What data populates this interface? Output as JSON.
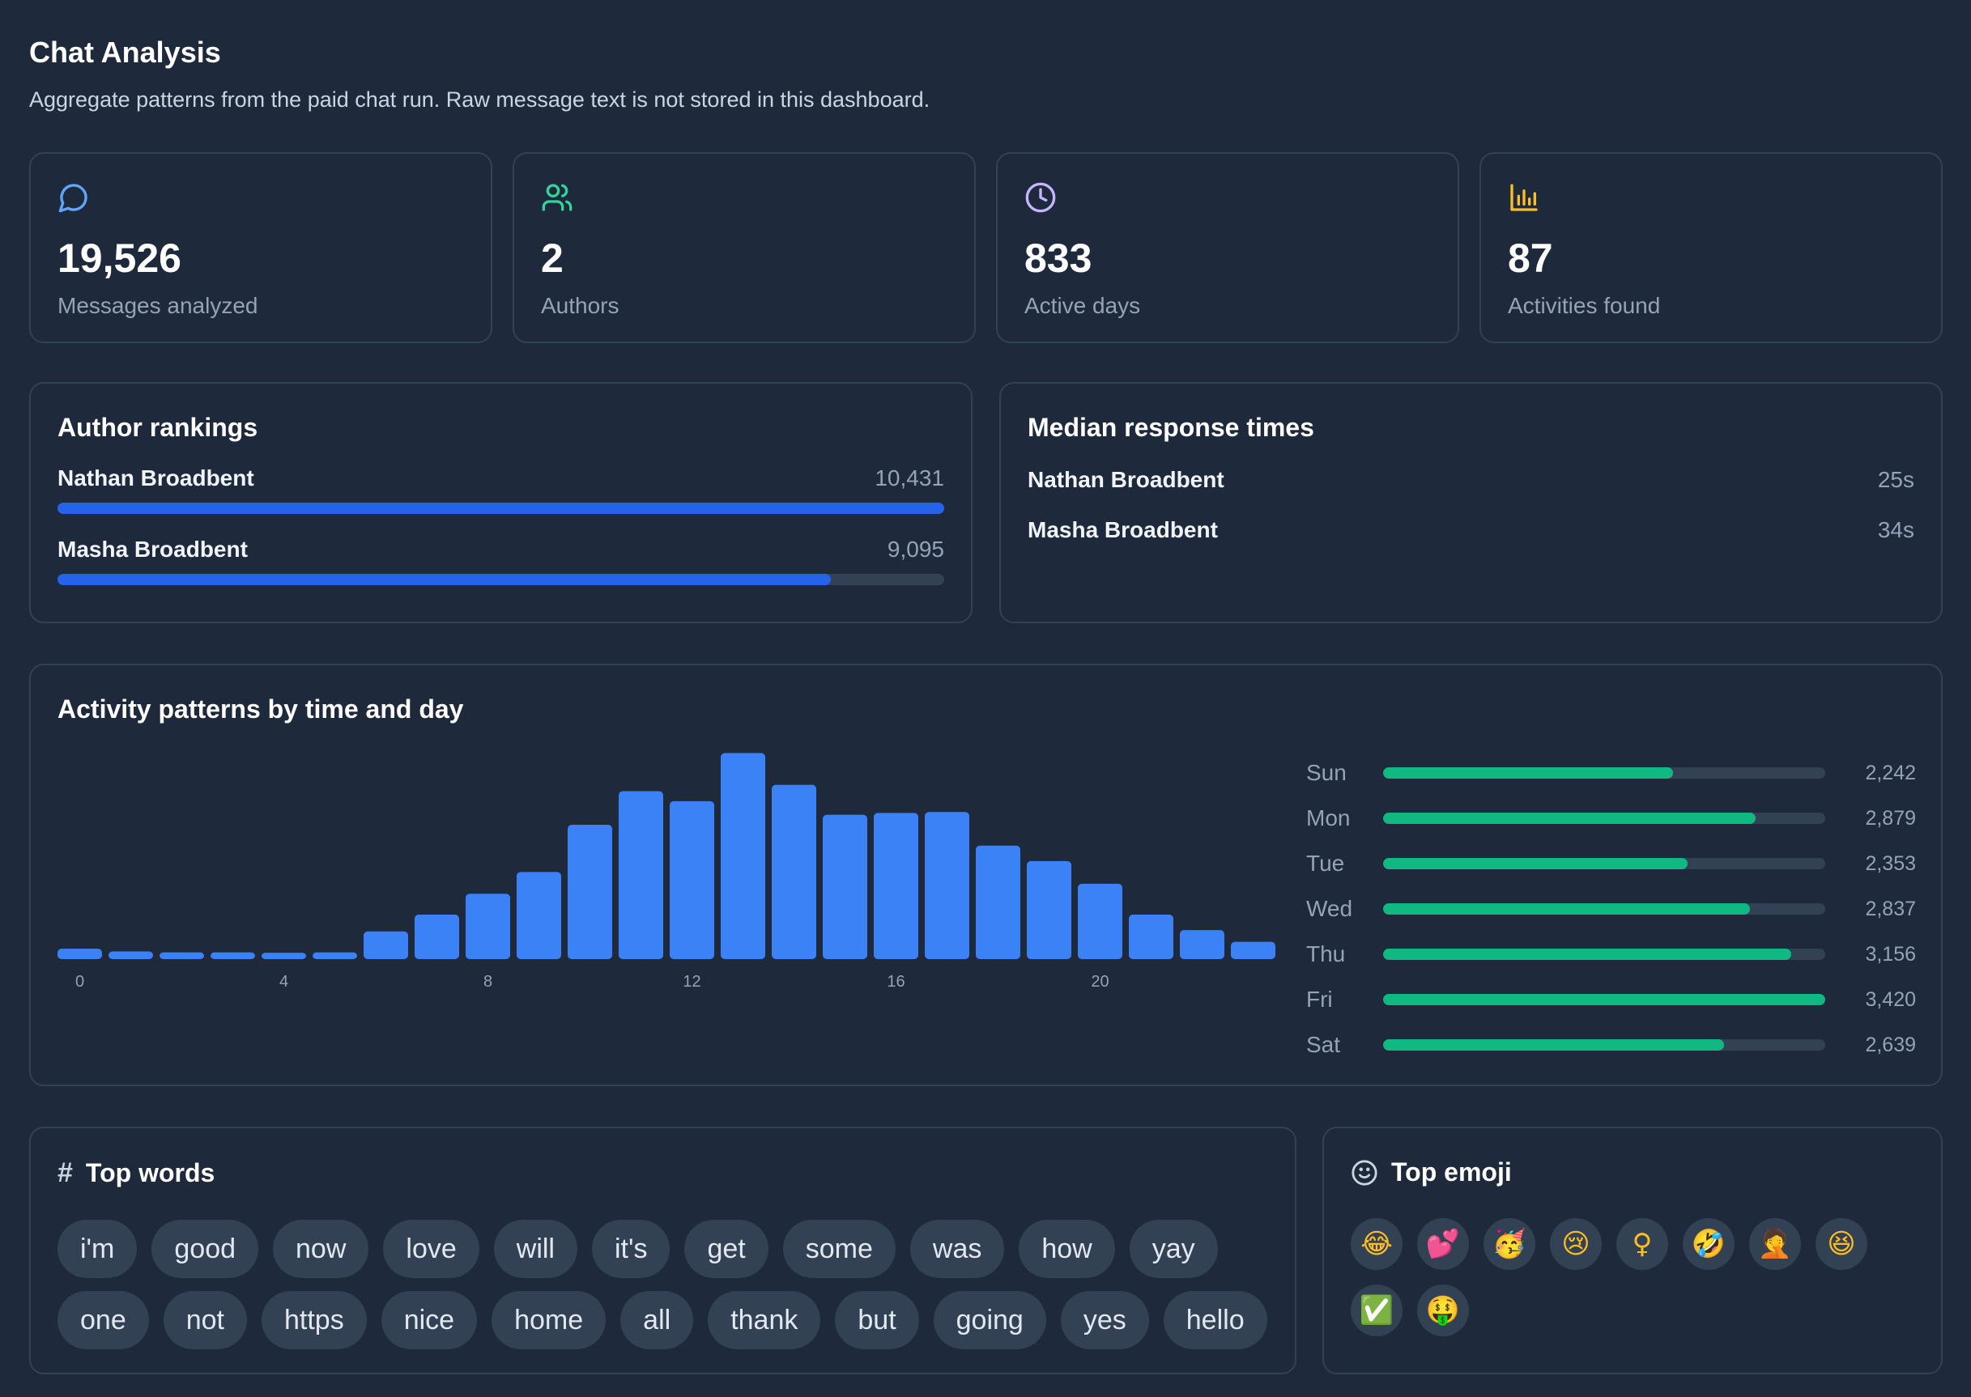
{
  "header": {
    "title": "Chat Analysis",
    "subtitle": "Aggregate patterns from the paid chat run. Raw message text is not stored in this dashboard."
  },
  "stats": [
    {
      "icon": "chat-bubble-icon",
      "value": "19,526",
      "label": "Messages analyzed",
      "color": "#60a5fa"
    },
    {
      "icon": "users-icon",
      "value": "2",
      "label": "Authors",
      "color": "#34d399"
    },
    {
      "icon": "clock-icon",
      "value": "833",
      "label": "Active days",
      "color": "#c4b5fd"
    },
    {
      "icon": "bar-chart-icon",
      "value": "87",
      "label": "Activities found",
      "color": "#fbbf24"
    }
  ],
  "author_rankings": {
    "title": "Author rankings",
    "authors": [
      {
        "name": "Nathan Broadbent",
        "count": "10,431",
        "share": 1.0
      },
      {
        "name": "Masha Broadbent",
        "count": "9,095",
        "share": 0.872
      }
    ]
  },
  "response_times": {
    "title": "Median response times",
    "rows": [
      {
        "name": "Nathan Broadbent",
        "value": "25s"
      },
      {
        "name": "Masha Broadbent",
        "value": "34s"
      }
    ]
  },
  "activity": {
    "title": "Activity patterns by time and day"
  },
  "chart_data": [
    {
      "type": "bar",
      "x": [
        0,
        1,
        2,
        3,
        4,
        5,
        6,
        7,
        8,
        9,
        10,
        11,
        12,
        13,
        14,
        15,
        16,
        17,
        18,
        19,
        20,
        21,
        22,
        23
      ],
      "tick_labels": [
        "0",
        "4",
        "8",
        "12",
        "16",
        "20"
      ],
      "values": [
        115,
        85,
        75,
        75,
        70,
        75,
        305,
        490,
        720,
        960,
        1480,
        1850,
        1740,
        2270,
        1920,
        1590,
        1610,
        1620,
        1250,
        1080,
        830,
        490,
        320,
        190
      ],
      "xlabel": "",
      "ylabel": "",
      "ylim": [
        0,
        2300
      ],
      "grid": false
    },
    {
      "type": "bar",
      "orientation": "horizontal",
      "categories": [
        "Sun",
        "Mon",
        "Tue",
        "Wed",
        "Thu",
        "Fri",
        "Sat"
      ],
      "values": [
        2242,
        2879,
        2353,
        2837,
        3156,
        3420,
        2639
      ],
      "value_labels": [
        "2,242",
        "2,879",
        "2,353",
        "2,837",
        "3,156",
        "3,420",
        "2,639"
      ],
      "xlim": [
        0,
        3420
      ]
    }
  ],
  "top_words": {
    "title": "Top words",
    "words": [
      "i'm",
      "good",
      "now",
      "love",
      "will",
      "it's",
      "get",
      "some",
      "was",
      "how",
      "yay",
      "one",
      "not",
      "https",
      "nice",
      "home",
      "all",
      "thank",
      "but",
      "going",
      "yes",
      "hello"
    ]
  },
  "top_emoji": {
    "title": "Top emoji",
    "emoji": [
      "😂",
      "💕",
      "🥳",
      "😢",
      "♀",
      "🤣",
      "🤦",
      "😆",
      "✅",
      "🤑"
    ]
  }
}
